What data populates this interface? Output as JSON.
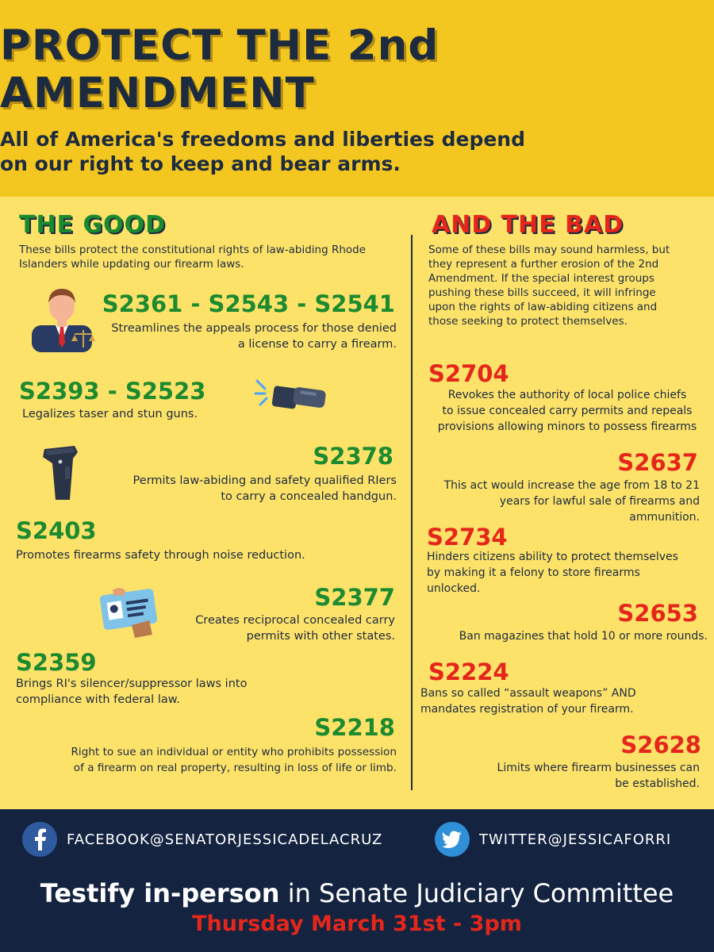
{
  "header": {
    "title_line1": "PROTECT THE 2nd",
    "title_line2": "AMENDMENT",
    "subtitle_line1": "All of America's freedoms and liberties depend",
    "subtitle_line2": "on our right to keep and bear arms."
  },
  "good": {
    "heading": "THE GOOD",
    "intro_line1": "These bills protect the constitutional rights of law-abiding Rhode",
    "intro_line2": "Islanders while updating our firearm laws.",
    "bills": [
      {
        "id": "S2361 - S2543 - S2541",
        "desc_line1": "Streamlines the appeals process for those denied",
        "desc_line2": "a license to carry a firearm."
      },
      {
        "id": "S2393 - S2523",
        "desc_line1": "Legalizes taser and stun guns."
      },
      {
        "id": "S2378",
        "desc_line1": "Permits law-abiding and safety qualified RIers",
        "desc_line2": "to carry a concealed handgun."
      },
      {
        "id": "S2403",
        "desc_line1": "Promotes firearms safety through noise reduction."
      },
      {
        "id": "S2377",
        "desc_line1": "Creates reciprocal concealed carry",
        "desc_line2": "permits with other states."
      },
      {
        "id": "S2359",
        "desc_line1": "Brings RI's silencer/suppressor laws into",
        "desc_line2": "compliance with federal law."
      },
      {
        "id": "S2218",
        "desc_line1": "Right to sue an individual or entity who prohibits possession",
        "desc_line2": "of a firearm on real property, resulting in loss of life or limb."
      }
    ]
  },
  "bad": {
    "heading": "AND THE BAD",
    "intro_lines": [
      "Some of these bills may sound harmless, but",
      "they represent a further erosion of the 2nd",
      "Amendment. If the special interest groups",
      "pushing these bills succeed, it will infringe",
      "upon the rights of law-abiding citizens and",
      "those seeking to protect themselves."
    ],
    "bills": [
      {
        "id": "S2704",
        "desc_line1": "Revokes the authority of local police chiefs",
        "desc_line2": "to issue concealed carry permits and repeals",
        "desc_line3": "provisions allowing minors to possess firearms"
      },
      {
        "id": "S2637",
        "desc_line1": "This act would increase the age from 18 to 21",
        "desc_line2": "years for lawful sale of firearms and",
        "desc_line3": "ammunition."
      },
      {
        "id": "S2734",
        "desc_line1": "Hinders citizens ability to protect themselves",
        "desc_line2": "by making it a felony to store firearms",
        "desc_line3": "unlocked."
      },
      {
        "id": "S2653",
        "desc_line1": "Ban magazines that hold 10 or more rounds."
      },
      {
        "id": "S2224",
        "desc_line1": "Bans so called “assault weapons” AND",
        "desc_line2": "mandates registration of your firearm."
      },
      {
        "id": "S2628",
        "desc_line1": "Limits where firearm businesses can",
        "desc_line2": "be established."
      }
    ]
  },
  "footer": {
    "facebook": "FACEBOOK@SENATORJESSICADELACRUZ",
    "twitter": "TWITTER@JESSICAFORRI",
    "testify_bold": "Testify in-person",
    "testify_rest": " in Senate Judiciary Committee",
    "date": "Thursday March 31st - 3pm"
  },
  "icons": [
    "lawyer-icon",
    "stun-gun-icon",
    "holster-icon",
    "id-card-icon",
    "facebook-icon",
    "twitter-icon"
  ],
  "colors": {
    "header_bg": "#f4c720",
    "body_bg": "#fde26a",
    "good": "#1d8a2f",
    "bad": "#e5261a",
    "navy": "#142440"
  }
}
